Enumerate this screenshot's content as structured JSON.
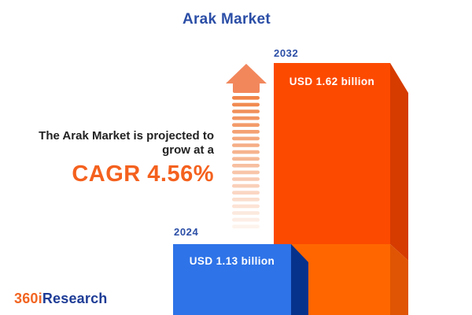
{
  "header": {
    "title": "Arak Market"
  },
  "annotation": {
    "line1": "The Arak Market is projected to",
    "line2": "grow at a",
    "cagr_label": "CAGR 4.56%"
  },
  "chart_data": {
    "type": "bar",
    "title": "Arak Market",
    "categories": [
      "2024",
      "2032"
    ],
    "values": [
      1.13,
      1.62
    ],
    "unit": "USD billion",
    "value_labels": [
      "USD 1.13 billion",
      "USD 1.62 billion"
    ],
    "cagr_percent": 4.56,
    "bar_colors": [
      "#2E73E8",
      "#FC4A00"
    ],
    "style": "3d-bars",
    "legend": "none",
    "axes": "none",
    "background": "#ffffff"
  },
  "bars": {
    "b2024": {
      "year": "2024",
      "value_label": "USD 1.13 billion"
    },
    "b2032": {
      "year": "2032",
      "value_label": "USD 1.62 billion"
    }
  },
  "footer": {
    "logo_part1": "360i",
    "logo_part2": "Research"
  },
  "colors": {
    "title_blue": "#2B4EA6",
    "annotation_dark": "#222222",
    "cagr_orange": "#F4611E",
    "blue_front": "#2E73E8",
    "blue_side": "#06328C",
    "orange_front_top": "#FC4A00",
    "orange_front_bottom": "#FF6600",
    "orange_side_top": "#D63C00",
    "orange_side_bottom": "#E05503",
    "arrow_head": "#F2875C",
    "arrow_stripe": "#F08448",
    "logo_orange": "#F26522",
    "logo_blue": "#1E3C96"
  }
}
